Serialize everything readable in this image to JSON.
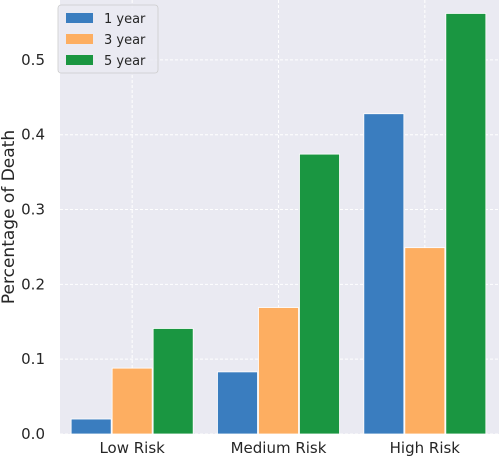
{
  "chart_data": {
    "type": "bar",
    "title": "",
    "xlabel": "",
    "ylabel": "Percentage of Death",
    "categories": [
      "Low Risk",
      "Medium Risk",
      "High Risk"
    ],
    "series": [
      {
        "name": "1 year",
        "color": "#3a7dbf",
        "values": [
          0.02,
          0.083,
          0.428
        ]
      },
      {
        "name": "3 year",
        "color": "#fdae61",
        "values": [
          0.088,
          0.169,
          0.249
        ]
      },
      {
        "name": "5 year",
        "color": "#1a9641",
        "values": [
          0.141,
          0.374,
          0.562
        ]
      }
    ],
    "ylim": [
      0,
      0.58
    ],
    "yticks": [
      0.0,
      0.1,
      0.2,
      0.3,
      0.4,
      0.5
    ],
    "ytick_labels": [
      "0.0",
      "0.1",
      "0.2",
      "0.3",
      "0.4",
      "0.5"
    ],
    "grid": true,
    "background": "#eaeaf2",
    "legend_position": "top-left"
  }
}
